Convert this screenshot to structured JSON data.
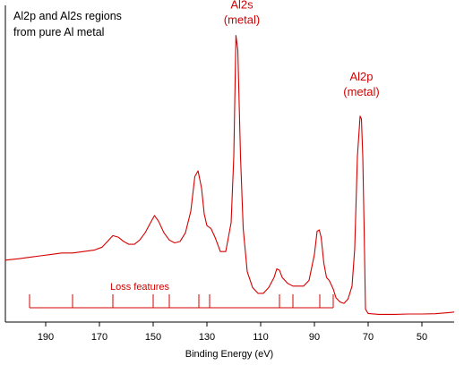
{
  "chart_data": {
    "type": "line",
    "title": "Al2p and Al2s regions\nfrom pure Al metal",
    "xlabel": "Binding Energy (eV)",
    "ylabel": "",
    "x_reversed": true,
    "xlim": [
      205,
      38
    ],
    "ylim": [
      0,
      100
    ],
    "x_ticks": [
      190,
      170,
      150,
      130,
      110,
      90,
      70,
      50
    ],
    "grid": false,
    "legend": "none",
    "line_color": "#d40000",
    "axis_color": "#000000",
    "annotations": [
      {
        "lines": [
          "Al2s",
          "(metal)"
        ],
        "x": 117,
        "y": 97
      },
      {
        "lines": [
          "Al2p",
          "(metal)"
        ],
        "x": 72.5,
        "y": 72
      }
    ],
    "loss_features": {
      "label": "Loss features",
      "label_x": 155,
      "range": [
        196,
        83
      ],
      "baseline_y": 3,
      "ticks": [
        {
          "x": 196,
          "top": 8
        },
        {
          "x": 180,
          "top": 8
        },
        {
          "x": 165,
          "top": 8
        },
        {
          "x": 150,
          "top": 8
        },
        {
          "x": 144,
          "top": 8
        },
        {
          "x": 133,
          "top": 8
        },
        {
          "x": 129,
          "top": 8
        },
        {
          "x": 103,
          "top": 8
        },
        {
          "x": 98,
          "top": 8
        },
        {
          "x": 88,
          "top": 8
        },
        {
          "x": 83,
          "top": 8
        }
      ]
    },
    "series": [
      {
        "values": [
          [
            205,
            19
          ],
          [
            200,
            19.5
          ],
          [
            196,
            20
          ],
          [
            192,
            20.5
          ],
          [
            188,
            21
          ],
          [
            184,
            21.5
          ],
          [
            180,
            21.5
          ],
          [
            176,
            22
          ],
          [
            172,
            22.5
          ],
          [
            169,
            23.5
          ],
          [
            167,
            25.5
          ],
          [
            165,
            27.5
          ],
          [
            163,
            27
          ],
          [
            161,
            25.5
          ],
          [
            159,
            24.5
          ],
          [
            157,
            24.5
          ],
          [
            155,
            26
          ],
          [
            153,
            28.5
          ],
          [
            151,
            32
          ],
          [
            149.5,
            34.5
          ],
          [
            148,
            32.5
          ],
          [
            146,
            28.5
          ],
          [
            144,
            26
          ],
          [
            142,
            25
          ],
          [
            140,
            25.5
          ],
          [
            138,
            28.5
          ],
          [
            136,
            36
          ],
          [
            134.5,
            48
          ],
          [
            133.3,
            50
          ],
          [
            132,
            44
          ],
          [
            131,
            35
          ],
          [
            130,
            31
          ],
          [
            128.5,
            30
          ],
          [
            127,
            27
          ],
          [
            125,
            22
          ],
          [
            123,
            22
          ],
          [
            121,
            32
          ],
          [
            120,
            55
          ],
          [
            119.2,
            97
          ],
          [
            118.5,
            92
          ],
          [
            117.5,
            55
          ],
          [
            116.5,
            30
          ],
          [
            115,
            15
          ],
          [
            113,
            9.5
          ],
          [
            111,
            7.5
          ],
          [
            109,
            7.5
          ],
          [
            107,
            9.5
          ],
          [
            105,
            13
          ],
          [
            104,
            16
          ],
          [
            103,
            15.5
          ],
          [
            102,
            13
          ],
          [
            100,
            11
          ],
          [
            98,
            10
          ],
          [
            96,
            10
          ],
          [
            94,
            10
          ],
          [
            92,
            12
          ],
          [
            90,
            21
          ],
          [
            89,
            29
          ],
          [
            88.2,
            29.5
          ],
          [
            87.5,
            27
          ],
          [
            86.5,
            18
          ],
          [
            85.5,
            13
          ],
          [
            84.5,
            12
          ],
          [
            83,
            9
          ],
          [
            82,
            6
          ],
          [
            80.5,
            4.5
          ],
          [
            79,
            4
          ],
          [
            77.5,
            5.5
          ],
          [
            76,
            10
          ],
          [
            75,
            23
          ],
          [
            74,
            55
          ],
          [
            73,
            69
          ],
          [
            72.5,
            68
          ],
          [
            72,
            55
          ],
          [
            71.5,
            30
          ],
          [
            71,
            2
          ],
          [
            70,
            0.5
          ],
          [
            66,
            0.2
          ],
          [
            60,
            0.2
          ],
          [
            55,
            0.3
          ],
          [
            50,
            0.3
          ],
          [
            45,
            0.4
          ],
          [
            40,
            0.8
          ],
          [
            38,
            1
          ]
        ]
      }
    ]
  }
}
